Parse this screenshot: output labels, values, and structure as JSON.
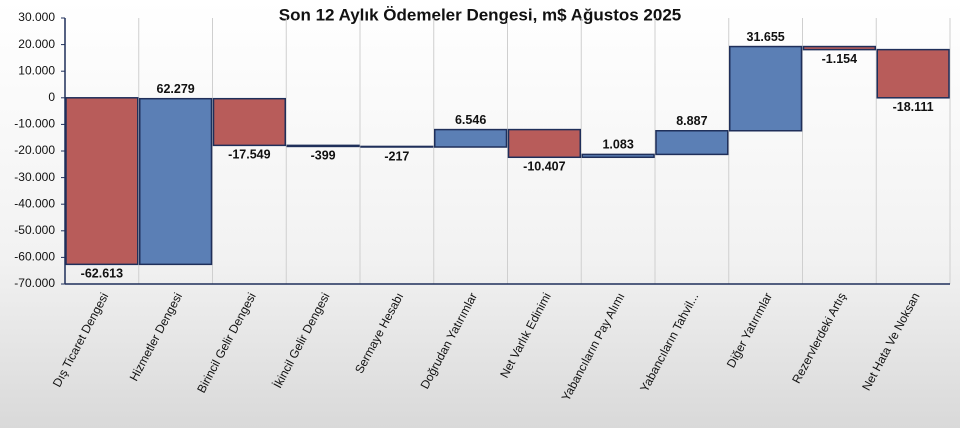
{
  "chart_data": {
    "type": "waterfall",
    "title": "Son 12 Aylık Ödemeler Dengesi, m$ Ağustos 2025",
    "categories": [
      "Dış Ticaret Dengesi",
      "Hizmetler Dengesi",
      "Birincil Gelir Dengesi",
      "İkincil Gelir Dengesi",
      "Sermaye Hesabı",
      "Doğrudan Yatırımlar",
      "Net Varlık Edinimi",
      "Yabancıların Pay Alımı",
      "Yabancıların Tahvil...",
      "Diğer Yatırımlar",
      "Rezervlerdeki Artış",
      "Net Hata Ve Noksan"
    ],
    "values": [
      -62613,
      62279,
      -17549,
      -399,
      -217,
      6546,
      -10407,
      1083,
      8887,
      31655,
      -1154,
      -18111
    ],
    "value_labels": [
      "-62.613",
      "62.279",
      "-17.549",
      "-399",
      "-217",
      "6.546",
      "-10.407",
      "1.083",
      "8.887",
      "31.655",
      "-1.154",
      "-18.111"
    ],
    "increase_color": "#5b7fb5",
    "decrease_color": "#b85c5a",
    "ylim": [
      -70000,
      30000
    ],
    "yticks": [
      {
        "value": -70000,
        "label": "-70.000"
      },
      {
        "value": -60000,
        "label": "-60.000"
      },
      {
        "value": -50000,
        "label": "-50.000"
      },
      {
        "value": -40000,
        "label": "-40.000"
      },
      {
        "value": -30000,
        "label": "-30.000"
      },
      {
        "value": -20000,
        "label": "-20.000"
      },
      {
        "value": -10000,
        "label": "-10.000"
      },
      0,
      {
        "value": 10000,
        "label": "10.000"
      },
      {
        "value": 20000,
        "label": "20.000"
      },
      {
        "value": 30000,
        "label": "30.000"
      }
    ],
    "grid": true
  }
}
